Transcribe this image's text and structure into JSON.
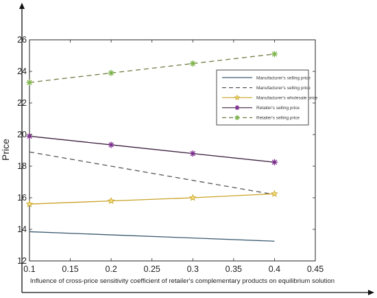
{
  "chart_data": {
    "type": "line",
    "xlabel": "Influence of cross-price sensitivity coefficient of retailer's complementary products on equilibrium solution",
    "ylabel": "Price",
    "xlim": [
      0.1,
      0.45
    ],
    "ylim": [
      12,
      26
    ],
    "xticks": [
      "0.1",
      "0.15",
      "0.2",
      "0.25",
      "0.3",
      "0.35",
      "0.4",
      "0.45"
    ],
    "yticks": [
      "12",
      "14",
      "16",
      "18",
      "20",
      "22",
      "24",
      "26"
    ],
    "x": [
      0.1,
      0.2,
      0.3,
      0.4
    ],
    "grid": false,
    "legend_position": "top-right",
    "series": [
      {
        "name": "Manufacturer's selling price",
        "values": [
          13.85,
          13.65,
          13.45,
          13.25
        ],
        "color": "#3a5a6e",
        "dash": "solid",
        "marker": "none",
        "legend": true
      },
      {
        "name": "Manufacturer's selling price",
        "values": [
          18.9,
          18.0,
          17.1,
          16.2
        ],
        "color": "#555555",
        "dash": "dashed",
        "marker": "none",
        "legend": true
      },
      {
        "name": "Manufacturer's wholesale price",
        "values": [
          15.6,
          15.8,
          16.0,
          16.25
        ],
        "color": "#c9a227",
        "dash": "solid",
        "marker": "star",
        "legend": true
      },
      {
        "name": "Retailer's selling price",
        "values": [
          19.9,
          19.35,
          18.8,
          18.25
        ],
        "color": "#3b1f3d",
        "marker_color": "#7b2d8b",
        "dash": "solid",
        "marker": "asterisk",
        "legend": true
      },
      {
        "name": "Retailer's selling price",
        "values": [
          23.3,
          23.9,
          24.5,
          25.1
        ],
        "color": "#6f7a42",
        "marker_color": "#7db34a",
        "dash": "dashed",
        "marker": "asterisk",
        "legend": true
      }
    ]
  }
}
